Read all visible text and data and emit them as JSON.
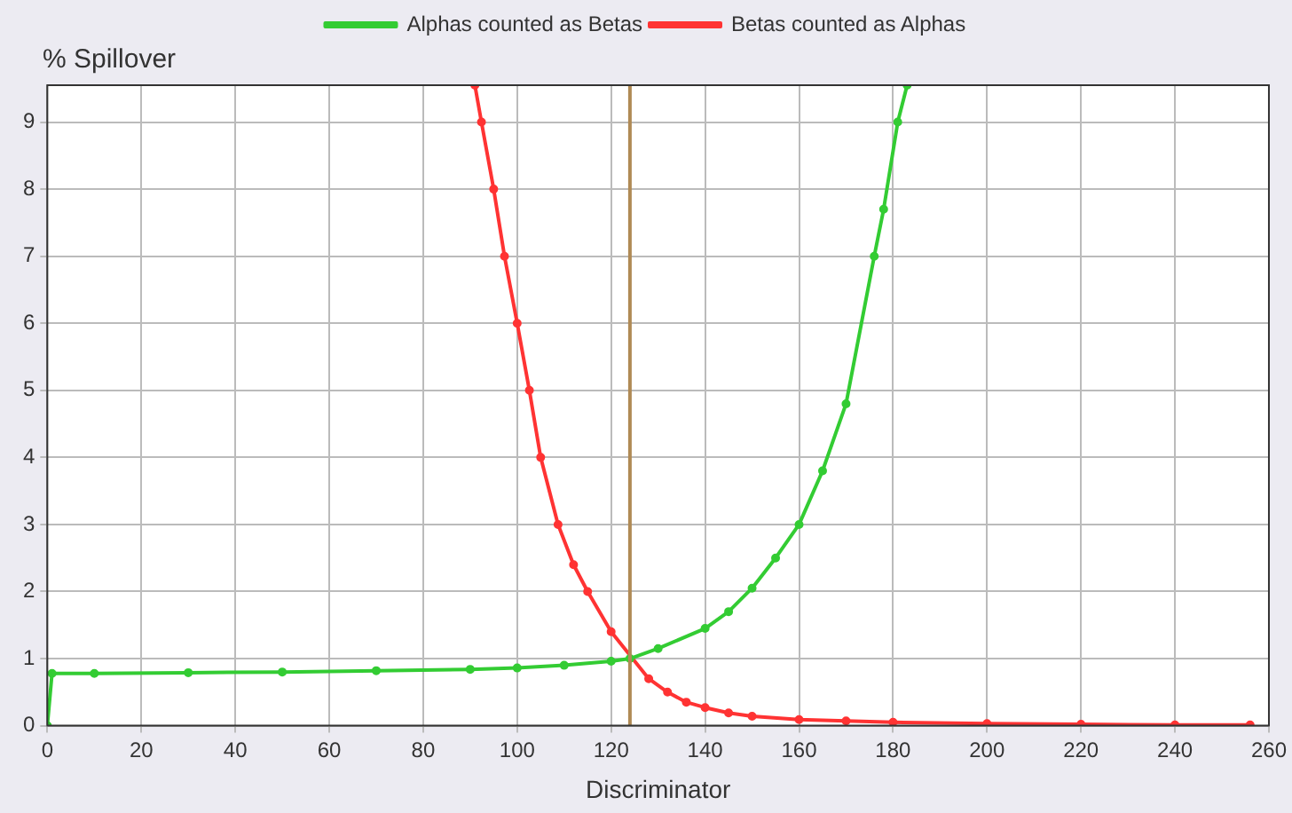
{
  "chart_data": {
    "type": "line",
    "ylabel": "% Spillover",
    "xlabel": "Discriminator",
    "xlim": [
      0,
      260
    ],
    "xticks": [
      0,
      20,
      40,
      60,
      80,
      100,
      120,
      140,
      160,
      180,
      200,
      220,
      240,
      260
    ],
    "ylim": [
      0,
      9.55
    ],
    "yticks": [
      0,
      1,
      2,
      3,
      4,
      5,
      6,
      7,
      8,
      9
    ],
    "grid": true,
    "legend": "top",
    "marker": "circle",
    "line_style": "solid",
    "series": [
      {
        "name": "Alphas counted as Betas",
        "color": "#33cc33",
        "x": [
          0,
          1,
          10,
          30,
          50,
          70,
          90,
          100,
          110,
          120,
          124,
          130,
          140,
          145,
          150,
          155,
          160,
          165,
          170,
          176,
          178,
          181,
          183
        ],
        "values": [
          0,
          0.78,
          0.78,
          0.79,
          0.8,
          0.82,
          0.84,
          0.86,
          0.9,
          0.96,
          1.0,
          1.15,
          1.45,
          1.7,
          2.05,
          2.5,
          3.0,
          3.8,
          4.8,
          7,
          7.7,
          9,
          9.55
        ]
      },
      {
        "name": "Betas counted as Alphas",
        "color": "#ff3333",
        "x": [
          91,
          92.4,
          95,
          97.3,
          100,
          102.6,
          105,
          108.7,
          112,
          115,
          120,
          128,
          132,
          136,
          140,
          145,
          150,
          160,
          170,
          180,
          200,
          220,
          240,
          256
        ],
        "values": [
          9.55,
          9,
          8,
          7,
          6,
          5,
          4,
          3,
          2.4,
          2,
          1.4,
          0.7,
          0.5,
          0.35,
          0.27,
          0.19,
          0.14,
          0.09,
          0.07,
          0.05,
          0.03,
          0.02,
          0.01,
          0.01
        ]
      }
    ],
    "ref_lines": [
      {
        "axis": "x",
        "value": 124,
        "color": "#b08a55"
      }
    ]
  }
}
